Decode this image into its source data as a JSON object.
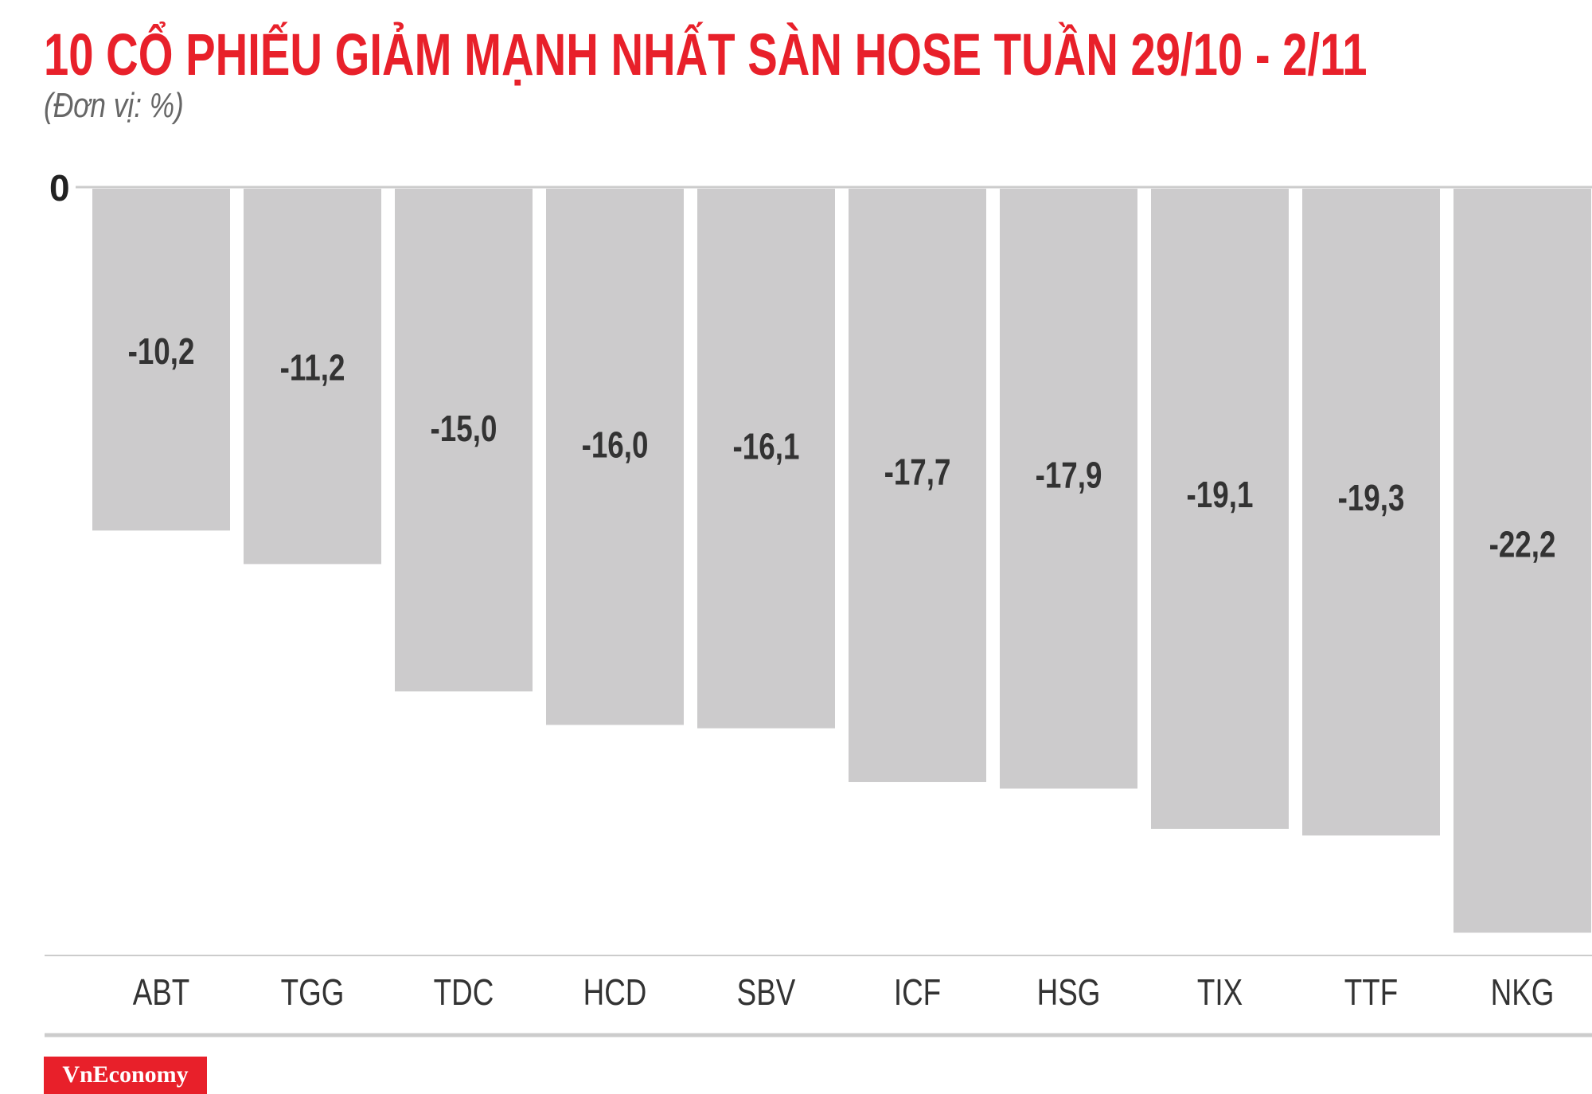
{
  "chart_data": {
    "type": "bar",
    "title": "10 CỔ PHIẾU GIẢM MẠNH NHẤT SÀN HOSE TUẦN 29/10 - 2/11",
    "subtitle": "(Đơn vị: %)",
    "categories": [
      "ABT",
      "TGG",
      "TDC",
      "HCD",
      "SBV",
      "ICF",
      "HSG",
      "TIX",
      "TTF",
      "NKG"
    ],
    "values": [
      -10.2,
      -11.2,
      -15.0,
      -16.0,
      -16.1,
      -17.7,
      -17.9,
      -19.1,
      -19.3,
      -22.2
    ],
    "value_labels": [
      "-10,2",
      "-11,2",
      "-15,0",
      "-16,0",
      "-16,1",
      "-17,7",
      "-17,9",
      "-19,1",
      "-19,3",
      "-22,2"
    ],
    "y_tick_label": "0",
    "ylim": [
      -23,
      0
    ],
    "grid": false,
    "xlabel": "",
    "ylabel": "",
    "bar_color": "#cccbcc",
    "title_color": "#e8202a"
  },
  "logo": "VnEconomy"
}
